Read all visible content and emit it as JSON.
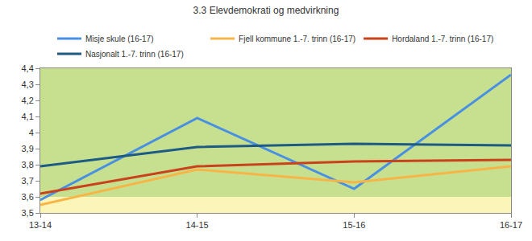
{
  "chart_data": {
    "type": "line",
    "title": "3.3 Elevdemokrati og medvirkning",
    "categories": [
      "13-14",
      "14-15",
      "15-16",
      "16-17"
    ],
    "series": [
      {
        "name": "Misje skule (16-17)",
        "color": "#4a90e2",
        "values": [
          3.58,
          4.09,
          3.65,
          4.36
        ]
      },
      {
        "name": "Fjell kommune 1.-7. trinn (16-17)",
        "color": "#f7b548",
        "values": [
          3.55,
          3.77,
          3.69,
          3.79
        ]
      },
      {
        "name": "Hordaland 1.-7. trinn (16-17)",
        "color": "#c9421c",
        "values": [
          3.62,
          3.79,
          3.82,
          3.83
        ]
      },
      {
        "name": "Nasjonalt 1.-7. trinn (16-17)",
        "color": "#1d5a84",
        "values": [
          3.79,
          3.91,
          3.93,
          3.92
        ]
      }
    ],
    "ylim": [
      3.5,
      4.4
    ],
    "yticks": [
      {
        "value": 3.5,
        "label": "3,5"
      },
      {
        "value": 3.6,
        "label": "3,6"
      },
      {
        "value": 3.7,
        "label": "3,7"
      },
      {
        "value": 3.8,
        "label": "3,8"
      },
      {
        "value": 3.9,
        "label": "3,9"
      },
      {
        "value": 4,
        "label": "4"
      },
      {
        "value": 4.1,
        "label": "4,1"
      },
      {
        "value": 4.2,
        "label": "4,2"
      },
      {
        "value": 4.3,
        "label": "4,3"
      },
      {
        "value": 4.4,
        "label": "4,4"
      }
    ],
    "grid": false,
    "legend": "top",
    "bands": [
      {
        "from": 3.5,
        "to": 3.6,
        "color": "#fbf5b7"
      },
      {
        "from": 3.6,
        "to": 4.4,
        "color": "#c6e08f"
      }
    ]
  }
}
